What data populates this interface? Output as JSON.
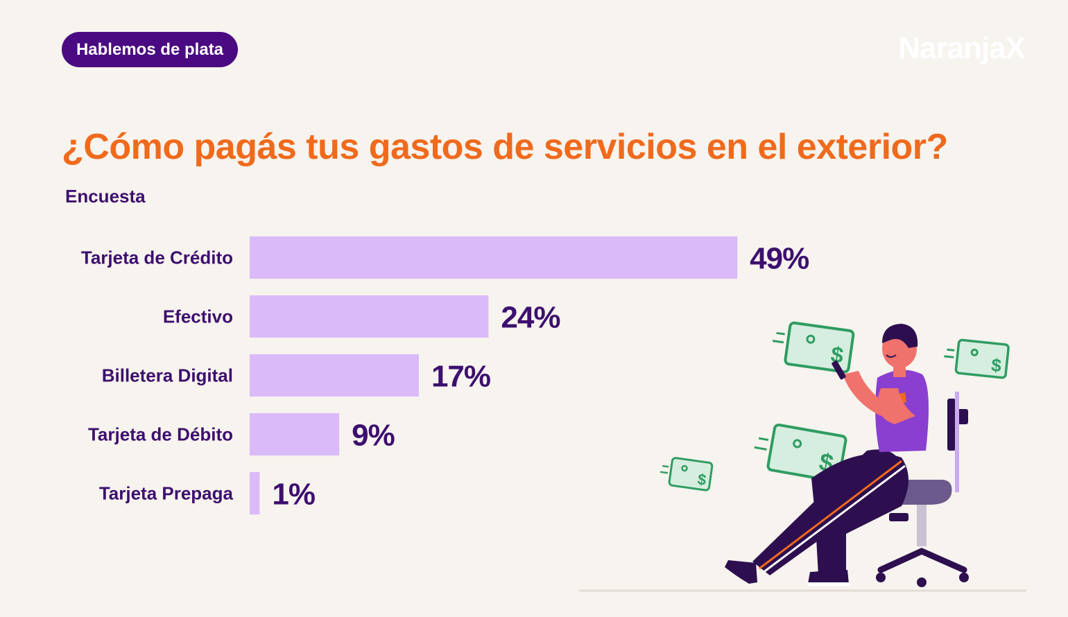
{
  "header": {
    "badge_label": "Hablemos de plata",
    "brand_logo": "NaranjaX"
  },
  "colors": {
    "background": "#f7f3ee",
    "title": "#ef6a1c",
    "text_dark": "#3d0f6e",
    "badge": "#4a0a82",
    "bar": "#dabaf9",
    "money": "#2f9c62"
  },
  "chart_data": {
    "type": "bar",
    "orientation": "horizontal",
    "title": "¿Cómo pagás tus gastos de servicios en el exterior?",
    "subtitle": "Encuesta",
    "categories": [
      "Tarjeta de Crédito",
      "Efectivo",
      "Billetera Digital",
      "Tarjeta de Débito",
      "Tarjeta Prepaga"
    ],
    "values": [
      49,
      24,
      17,
      9,
      1
    ],
    "value_labels": [
      "49%",
      "24%",
      "17%",
      "9%",
      "1%"
    ],
    "xlim": [
      0,
      100
    ],
    "grid": false,
    "legend": "none"
  },
  "illustration": {
    "icon_names": [
      "money-bill-icon",
      "person-icon",
      "chair-icon",
      "smartphone-icon"
    ]
  }
}
